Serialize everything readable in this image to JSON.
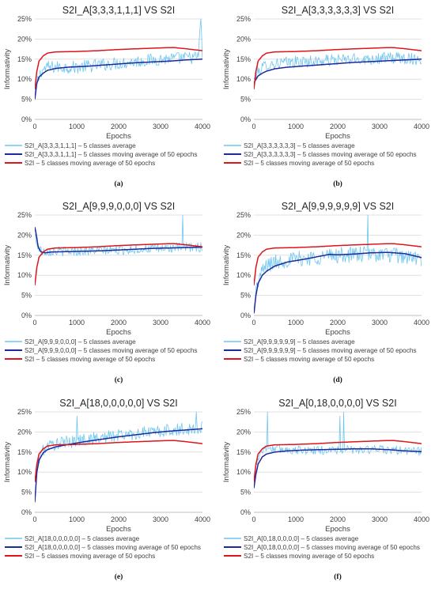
{
  "colors": {
    "average": "#6ec6f0",
    "moving_average": "#1c2a9c",
    "s2i": "#e0151b",
    "grid": "#d9d9d9"
  },
  "chart_data": [
    {
      "type": "line",
      "panel": "(a)",
      "title": "S2I_A[3,3,3,1,1,1]  VS  S2I",
      "xlabel": "Epochs",
      "ylabel": "Informativity",
      "xlim": [
        0,
        4000
      ],
      "ylim": [
        0,
        25
      ],
      "xticks": [
        "0",
        "1000",
        "2000",
        "3000",
        "4000"
      ],
      "yticks": [
        "0%",
        "5%",
        "10%",
        "15%",
        "20%",
        "25%"
      ],
      "grid": true,
      "legend_position": "bottom",
      "series": [
        {
          "name": "S2I_A[3,3,3,1,1,1] – 5 classes average",
          "style": "noisy",
          "x": [
            0,
            50,
            150,
            300,
            600,
            1000,
            1500,
            2000,
            2500,
            3000,
            3500,
            3900,
            3960,
            4000
          ],
          "y": [
            5,
            9,
            12,
            13,
            13,
            13,
            13.5,
            14,
            14.5,
            15,
            15.2,
            15.5,
            25,
            15
          ],
          "noise": 1.6,
          "spikes": [
            [
              3960,
              25
            ]
          ]
        },
        {
          "name": "S2I_A[3,3,3,1,1,1] – 5 classes moving average of 50 epochs",
          "x": [
            0,
            50,
            100,
            200,
            300,
            500,
            800,
            1200,
            1600,
            2000,
            2400,
            2800,
            3200,
            3600,
            4000
          ],
          "y": [
            5,
            9,
            10.5,
            11.5,
            12.2,
            12.7,
            13,
            13.2,
            13.5,
            13.8,
            14.1,
            14.3,
            14.5,
            14.8,
            15
          ]
        },
        {
          "name": "S2I – 5 classes moving average of 50 epochs",
          "x": [
            0,
            50,
            100,
            200,
            300,
            500,
            1000,
            1500,
            2000,
            2500,
            3000,
            3300,
            3600,
            4000
          ],
          "y": [
            7.5,
            12,
            14.5,
            15.8,
            16.5,
            16.8,
            16.9,
            17.1,
            17.4,
            17.6,
            17.8,
            17.9,
            17.6,
            17.1
          ]
        }
      ]
    },
    {
      "type": "line",
      "panel": "(b)",
      "title": "S2I_A[3,3,3,3,3,3]  VS  S2I",
      "xlabel": "Epochs",
      "ylabel": "Informativity",
      "xlim": [
        0,
        4000
      ],
      "ylim": [
        0,
        25
      ],
      "xticks": [
        "0",
        "1000",
        "2000",
        "3000",
        "4000"
      ],
      "yticks": [
        "0%",
        "5%",
        "10%",
        "15%",
        "20%",
        "25%"
      ],
      "grid": true,
      "legend_position": "bottom",
      "series": [
        {
          "name": "S2I_A[3,3,3,3,3,3] – 5 classes average",
          "style": "noisy",
          "x": [
            0,
            50,
            150,
            300,
            600,
            1000,
            1500,
            2000,
            2500,
            3000,
            3500,
            4000
          ],
          "y": [
            10,
            11,
            12.5,
            13.5,
            14,
            14.3,
            14.5,
            14.8,
            15,
            15.2,
            15.3,
            15
          ],
          "noise": 1.5,
          "spikes": []
        },
        {
          "name": "S2I_A[3,3,3,3,3,3] – 5 classes moving average of 50 epochs",
          "x": [
            0,
            50,
            100,
            200,
            300,
            500,
            800,
            1200,
            1600,
            2000,
            2400,
            2800,
            3200,
            3600,
            4000
          ],
          "y": [
            9,
            10,
            10.8,
            11.5,
            12,
            12.6,
            13,
            13.3,
            13.6,
            13.9,
            14.2,
            14.4,
            14.6,
            14.8,
            15
          ]
        },
        {
          "name": "S2I – 5 classes moving average of 50 epochs",
          "x": [
            0,
            50,
            100,
            200,
            300,
            500,
            1000,
            1500,
            2000,
            2500,
            3000,
            3300,
            3600,
            4000
          ],
          "y": [
            7.5,
            12,
            14.5,
            15.8,
            16.5,
            16.8,
            16.9,
            17.1,
            17.4,
            17.6,
            17.8,
            17.9,
            17.6,
            17.1
          ]
        }
      ]
    },
    {
      "type": "line",
      "panel": "(c)",
      "title": "S2I_A[9,9,9,0,0,0]  VS  S2I",
      "xlabel": "Epochs",
      "ylabel": "Informativity",
      "xlim": [
        0,
        4000
      ],
      "ylim": [
        0,
        25
      ],
      "xticks": [
        "0",
        "1000",
        "2000",
        "3000",
        "4000"
      ],
      "yticks": [
        "0%",
        "5%",
        "10%",
        "15%",
        "20%",
        "25%"
      ],
      "grid": true,
      "legend_position": "bottom",
      "series": [
        {
          "name": "S2I_A[9,9,9,0,0,0] – 5 classes average",
          "style": "noisy",
          "x": [
            0,
            50,
            100,
            200,
            400,
            800,
            1200,
            1600,
            2000,
            2500,
            3000,
            3500,
            4000
          ],
          "y": [
            20,
            18,
            16.5,
            16,
            16,
            16,
            16.1,
            16.2,
            16.3,
            16.5,
            16.7,
            16.9,
            17
          ],
          "noise": 1.2,
          "spikes": [
            [
              3520,
              25
            ]
          ]
        },
        {
          "name": "S2I_A[9,9,9,0,0,0] – 5 classes moving average of 50 epochs",
          "x": [
            0,
            40,
            80,
            150,
            250,
            400,
            800,
            1200,
            1600,
            2000,
            2400,
            2800,
            3200,
            3600,
            4000
          ],
          "y": [
            22,
            20,
            17,
            15.8,
            15.6,
            15.8,
            15.9,
            16,
            16.1,
            16.3,
            16.5,
            16.7,
            16.8,
            16.9,
            17
          ]
        },
        {
          "name": "S2I – 5 classes moving average of 50 epochs",
          "x": [
            0,
            50,
            100,
            200,
            300,
            500,
            1000,
            1500,
            2000,
            2500,
            3000,
            3300,
            3600,
            4000
          ],
          "y": [
            7.5,
            12,
            14.5,
            15.8,
            16.5,
            16.8,
            16.9,
            17.1,
            17.4,
            17.6,
            17.8,
            17.9,
            17.6,
            17.1
          ]
        }
      ]
    },
    {
      "type": "line",
      "panel": "(d)",
      "title": "S2I_A[9,9,9,9,9,9]  VS  S2I",
      "xlabel": "Epochs",
      "ylabel": "Informativity",
      "xlim": [
        0,
        4000
      ],
      "ylim": [
        0,
        25
      ],
      "xticks": [
        "0",
        "1000",
        "2000",
        "3000",
        "4000"
      ],
      "yticks": [
        "0%",
        "5%",
        "10%",
        "15%",
        "20%",
        "25%"
      ],
      "grid": true,
      "legend_position": "bottom",
      "series": [
        {
          "name": "S2I_A[9,9,9,9,9,9] – 5 classes average",
          "style": "noisy",
          "x": [
            0,
            50,
            150,
            300,
            600,
            1000,
            1500,
            2000,
            2500,
            3000,
            3500,
            4000
          ],
          "y": [
            1,
            6,
            10,
            12.5,
            13.5,
            14,
            14.5,
            15,
            15.2,
            15.3,
            14.8,
            14
          ],
          "noise": 2.0,
          "spikes": [
            [
              2720,
              25
            ]
          ]
        },
        {
          "name": "S2I_A[9,9,9,9,9,9] – 5 classes moving average of 50 epochs",
          "x": [
            0,
            50,
            100,
            200,
            300,
            500,
            800,
            1200,
            1600,
            1800,
            2000,
            2400,
            2800,
            3200,
            3600,
            4000
          ],
          "y": [
            0.5,
            5,
            8,
            10,
            11,
            12.3,
            13.3,
            14,
            14.8,
            15.2,
            15.1,
            15.3,
            15.6,
            15.7,
            15.4,
            14.4
          ]
        },
        {
          "name": "S2I – 5 classes moving average of 50 epochs",
          "x": [
            0,
            50,
            100,
            200,
            300,
            500,
            1000,
            1500,
            2000,
            2500,
            3000,
            3300,
            3600,
            4000
          ],
          "y": [
            7.5,
            12,
            14.5,
            15.8,
            16.5,
            16.8,
            16.9,
            17.1,
            17.4,
            17.6,
            17.8,
            17.9,
            17.6,
            17.1
          ]
        }
      ]
    },
    {
      "type": "line",
      "panel": "(e)",
      "title": "S2I_A[18,0,0,0,0,0]  VS  S2I",
      "xlabel": "Epochs",
      "ylabel": "Informativity",
      "xlim": [
        0,
        4000
      ],
      "ylim": [
        0,
        25
      ],
      "xticks": [
        "0",
        "1000",
        "2000",
        "3000",
        "4000"
      ],
      "yticks": [
        "0%",
        "5%",
        "10%",
        "15%",
        "20%",
        "25%"
      ],
      "grid": true,
      "legend_position": "bottom",
      "series": [
        {
          "name": "S2I_A[18,0,0,0,0,0] – 5 classes average",
          "style": "noisy",
          "x": [
            0,
            50,
            150,
            300,
            600,
            1000,
            1500,
            2000,
            2500,
            3000,
            3500,
            4000
          ],
          "y": [
            3,
            11,
            15,
            16.5,
            17.2,
            17.8,
            18.5,
            19.2,
            19.7,
            20.2,
            20.6,
            21
          ],
          "noise": 1.6,
          "spikes": [
            [
              1000,
              24
            ],
            [
              3850,
              25
            ]
          ]
        },
        {
          "name": "S2I_A[18,0,0,0,0,0] – 5 classes moving average of 50 epochs",
          "x": [
            0,
            50,
            100,
            200,
            300,
            500,
            800,
            1200,
            1600,
            2000,
            2400,
            2800,
            3200,
            3600,
            4000
          ],
          "y": [
            2.5,
            10,
            13,
            14.8,
            15.6,
            16.3,
            16.9,
            17.6,
            18.2,
            18.8,
            19.3,
            19.8,
            20.2,
            20.5,
            20.8
          ]
        },
        {
          "name": "S2I – 5 classes moving average of 50 epochs",
          "x": [
            0,
            50,
            100,
            200,
            300,
            500,
            1000,
            1500,
            2000,
            2500,
            3000,
            3300,
            3600,
            4000
          ],
          "y": [
            7.5,
            12,
            14.5,
            15.8,
            16.5,
            16.8,
            16.9,
            17.1,
            17.4,
            17.6,
            17.8,
            17.9,
            17.6,
            17.1
          ]
        }
      ]
    },
    {
      "type": "line",
      "panel": "(f)",
      "title": "S2I_A[0,18,0,0,0,0]  VS  S2I",
      "xlabel": "Epochs",
      "ylabel": "Informativity",
      "xlim": [
        0,
        4000
      ],
      "ylim": [
        0,
        25
      ],
      "xticks": [
        "0",
        "1000",
        "2000",
        "3000",
        "4000"
      ],
      "yticks": [
        "0%",
        "5%",
        "10%",
        "15%",
        "20%",
        "25%"
      ],
      "grid": true,
      "legend_position": "bottom",
      "series": [
        {
          "name": "S2I_A[0,18,0,0,0,0] – 5 classes average",
          "style": "noisy",
          "x": [
            0,
            50,
            150,
            300,
            600,
            1000,
            1500,
            2000,
            2500,
            3000,
            3500,
            4000
          ],
          "y": [
            8,
            12,
            15,
            16,
            15.8,
            15.5,
            15.4,
            15.5,
            15.6,
            15.6,
            15.4,
            15.2
          ],
          "noise": 1.1,
          "spikes": [
            [
              320,
              25
            ],
            [
              2050,
              24
            ],
            [
              2150,
              25
            ]
          ]
        },
        {
          "name": "S2I_A[0,18,0,0,0,0] – 5 classes moving average of 50 epochs",
          "x": [
            0,
            50,
            100,
            200,
            300,
            500,
            800,
            1200,
            1600,
            2000,
            2400,
            2800,
            3200,
            3600,
            4000
          ],
          "y": [
            6,
            9.5,
            12,
            13.8,
            14.5,
            15,
            15.3,
            15.5,
            15.6,
            15.7,
            15.8,
            15.8,
            15.6,
            15.3,
            15.1
          ]
        },
        {
          "name": "S2I – 5 classes moving average of 50 epochs",
          "x": [
            0,
            50,
            100,
            200,
            300,
            500,
            1000,
            1500,
            2000,
            2500,
            3000,
            3300,
            3600,
            4000
          ],
          "y": [
            7.5,
            12,
            14.5,
            15.8,
            16.5,
            16.8,
            16.9,
            17.1,
            17.4,
            17.6,
            17.8,
            17.9,
            17.6,
            17.1
          ]
        }
      ]
    }
  ]
}
